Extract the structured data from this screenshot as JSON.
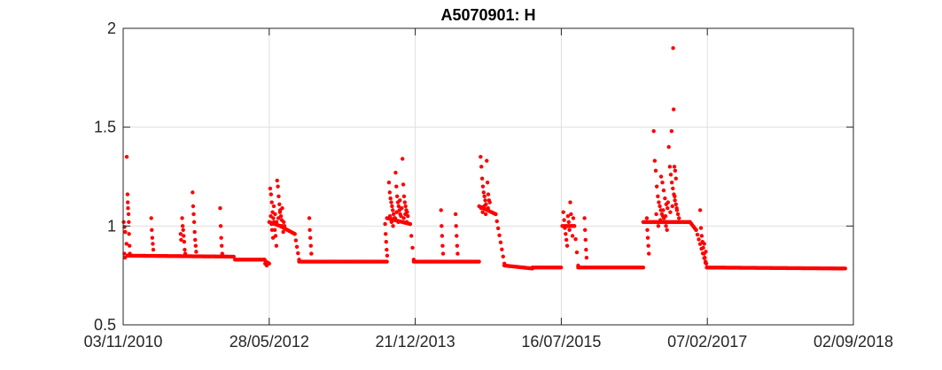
{
  "chart_data": {
    "type": "scatter",
    "title": "A5070901: H",
    "xlabel": "",
    "ylabel": "",
    "x_ticks": [
      "03/11/2010",
      "28/05/2012",
      "21/12/2013",
      "16/07/2015",
      "07/02/2017",
      "02/09/2018"
    ],
    "y_ticks": [
      "0.5",
      "1",
      "1.5",
      "2"
    ],
    "xlim": [
      "03/11/2010",
      "02/09/2018"
    ],
    "ylim": [
      0.5,
      2
    ],
    "grid": true,
    "legend": "none",
    "marker_color": "#ff0000",
    "baseline_segments": [
      {
        "x0": "05/11/2010",
        "x1": "11/11/2010",
        "y0": 1.02,
        "y1": 0.97
      },
      {
        "x0": "11/11/2010",
        "x1": "21/11/2010",
        "y0": 0.97,
        "y1": 0.85
      },
      {
        "x0": "21/11/2010",
        "x1": "10/01/2012",
        "y0": 0.85,
        "y1": 0.845
      },
      {
        "x0": "15/01/2012",
        "x1": "10/05/2012",
        "y0": 0.83,
        "y1": 0.83
      },
      {
        "x0": "15/05/2012",
        "x1": "28/05/2012",
        "y0": 0.82,
        "y1": 0.81
      },
      {
        "x0": "28/05/2012",
        "x1": "10/07/2012",
        "y0": 1.02,
        "y1": 1.0
      },
      {
        "x0": "10/07/2012",
        "x1": "05/09/2012",
        "y0": 1.0,
        "y1": 0.96
      },
      {
        "x0": "05/09/2012",
        "x1": "22/09/2012",
        "y0": 0.96,
        "y1": 0.83
      },
      {
        "x0": "22/09/2012",
        "x1": "01/09/2013",
        "y0": 0.82,
        "y1": 0.82
      },
      {
        "x0": "01/09/2013",
        "x1": "01/12/2013",
        "y0": 1.04,
        "y1": 1.01
      },
      {
        "x0": "01/12/2013",
        "x1": "15/12/2013",
        "y0": 1.01,
        "y1": 0.83
      },
      {
        "x0": "15/12/2013",
        "x1": "28/08/2014",
        "y0": 0.82,
        "y1": 0.82
      },
      {
        "x0": "28/08/2014",
        "x1": "01/11/2014",
        "y0": 1.1,
        "y1": 1.06
      },
      {
        "x0": "01/11/2014",
        "x1": "05/12/2014",
        "y0": 1.06,
        "y1": 0.81
      },
      {
        "x0": "05/12/2014",
        "x1": "25/03/2015",
        "y0": 0.8,
        "y1": 0.785
      },
      {
        "x0": "25/03/2015",
        "x1": "15/07/2015",
        "y0": 0.79,
        "y1": 0.79
      },
      {
        "x0": "20/07/2015",
        "x1": "05/09/2015",
        "y0": 1.0,
        "y1": 1.0
      },
      {
        "x0": "05/09/2015",
        "x1": "20/09/2015",
        "y0": 1.0,
        "y1": 0.8
      },
      {
        "x0": "20/09/2015",
        "x1": "01/06/2016",
        "y0": 0.79,
        "y1": 0.79
      },
      {
        "x0": "01/06/2016",
        "x1": "01/12/2016",
        "y0": 1.02,
        "y1": 1.02
      },
      {
        "x0": "01/12/2016",
        "x1": "25/12/2016",
        "y0": 1.02,
        "y1": 0.98
      },
      {
        "x0": "25/12/2016",
        "x1": "05/02/2017",
        "y0": 0.98,
        "y1": 0.79
      },
      {
        "x0": "05/02/2017",
        "x1": "01/08/2018",
        "y0": 0.79,
        "y1": 0.785
      }
    ],
    "scatter_points": [
      {
        "x": "17/11/2010",
        "y": 1.35
      },
      {
        "x": "20/11/2010",
        "y": 1.16
      },
      {
        "x": "21/11/2010",
        "y": 1.12
      },
      {
        "x": "22/11/2010",
        "y": 1.09
      },
      {
        "x": "24/11/2010",
        "y": 1.06
      },
      {
        "x": "25/11/2010",
        "y": 1.02
      },
      {
        "x": "26/11/2010",
        "y": 0.96
      },
      {
        "x": "28/11/2010",
        "y": 0.9
      },
      {
        "x": "29/11/2010",
        "y": 0.86
      },
      {
        "x": "08/11/2010",
        "y": 0.86
      },
      {
        "x": "10/11/2010",
        "y": 0.84
      },
      {
        "x": "21/02/2011",
        "y": 1.04
      },
      {
        "x": "23/02/2011",
        "y": 0.98
      },
      {
        "x": "25/02/2011",
        "y": 0.94
      },
      {
        "x": "27/02/2011",
        "y": 0.91
      },
      {
        "x": "01/03/2011",
        "y": 0.88
      },
      {
        "x": "22/06/2011",
        "y": 1.04
      },
      {
        "x": "24/06/2011",
        "y": 1.0
      },
      {
        "x": "26/06/2011",
        "y": 0.98
      },
      {
        "x": "28/06/2011",
        "y": 0.95
      },
      {
        "x": "30/06/2011",
        "y": 0.92
      },
      {
        "x": "02/07/2011",
        "y": 0.88
      },
      {
        "x": "04/07/2011",
        "y": 0.86
      },
      {
        "x": "16/06/2011",
        "y": 0.96
      },
      {
        "x": "18/06/2011",
        "y": 0.93
      },
      {
        "x": "02/08/2011",
        "y": 1.17
      },
      {
        "x": "04/08/2011",
        "y": 1.1
      },
      {
        "x": "06/08/2011",
        "y": 1.06
      },
      {
        "x": "08/08/2011",
        "y": 1.02
      },
      {
        "x": "10/08/2011",
        "y": 0.97
      },
      {
        "x": "12/08/2011",
        "y": 0.93
      },
      {
        "x": "14/08/2011",
        "y": 0.9
      },
      {
        "x": "16/08/2011",
        "y": 0.87
      },
      {
        "x": "18/11/2011",
        "y": 1.09
      },
      {
        "x": "20/11/2011",
        "y": 1.0
      },
      {
        "x": "22/11/2011",
        "y": 0.94
      },
      {
        "x": "24/11/2011",
        "y": 0.9
      },
      {
        "x": "26/11/2011",
        "y": 0.86
      },
      {
        "x": "08/05/2012",
        "y": 0.83
      },
      {
        "x": "12/05/2012",
        "y": 0.81
      },
      {
        "x": "18/05/2012",
        "y": 0.8
      },
      {
        "x": "01/06/2012",
        "y": 1.19
      },
      {
        "x": "04/06/2012",
        "y": 1.16
      },
      {
        "x": "07/06/2012",
        "y": 1.12
      },
      {
        "x": "10/06/2012",
        "y": 1.07
      },
      {
        "x": "13/06/2012",
        "y": 1.04
      },
      {
        "x": "16/06/2012",
        "y": 1.02
      },
      {
        "x": "19/06/2012",
        "y": 0.98
      },
      {
        "x": "22/06/2012",
        "y": 0.95
      },
      {
        "x": "25/06/2012",
        "y": 0.9
      },
      {
        "x": "28/06/2012",
        "y": 1.23
      },
      {
        "x": "01/07/2012",
        "y": 1.2
      },
      {
        "x": "04/07/2012",
        "y": 1.15
      },
      {
        "x": "07/07/2012",
        "y": 1.11
      },
      {
        "x": "10/07/2012",
        "y": 1.08
      },
      {
        "x": "13/07/2012",
        "y": 1.05
      },
      {
        "x": "16/07/2012",
        "y": 1.03
      },
      {
        "x": "19/07/2012",
        "y": 1.0
      },
      {
        "x": "22/07/2012",
        "y": 0.97
      },
      {
        "x": "03/06/2012",
        "y": 1.05
      },
      {
        "x": "06/06/2012",
        "y": 1.01
      },
      {
        "x": "15/06/2012",
        "y": 1.1
      },
      {
        "x": "20/06/2012",
        "y": 1.06
      },
      {
        "x": "26/06/2012",
        "y": 1.02
      },
      {
        "x": "03/07/2012",
        "y": 1.04
      },
      {
        "x": "09/07/2012",
        "y": 1.07
      },
      {
        "x": "15/07/2012",
        "y": 1.0
      },
      {
        "x": "18/07/2012",
        "y": 1.09
      },
      {
        "x": "24/07/2012",
        "y": 1.02
      },
      {
        "x": "27/07/2012",
        "y": 1.0
      },
      {
        "x": "08/06/2012",
        "y": 0.98
      },
      {
        "x": "12/06/2012",
        "y": 0.94
      },
      {
        "x": "01/11/2012",
        "y": 1.04
      },
      {
        "x": "03/11/2012",
        "y": 0.98
      },
      {
        "x": "05/11/2012",
        "y": 0.94
      },
      {
        "x": "07/11/2012",
        "y": 0.9
      },
      {
        "x": "09/11/2012",
        "y": 0.86
      },
      {
        "x": "25/08/2013",
        "y": 1.01
      },
      {
        "x": "27/08/2013",
        "y": 0.96
      },
      {
        "x": "29/08/2013",
        "y": 0.92
      },
      {
        "x": "31/08/2013",
        "y": 0.88
      },
      {
        "x": "02/09/2013",
        "y": 0.85
      },
      {
        "x": "09/09/2013",
        "y": 1.22
      },
      {
        "x": "12/09/2013",
        "y": 1.17
      },
      {
        "x": "15/09/2013",
        "y": 1.14
      },
      {
        "x": "18/09/2013",
        "y": 1.12
      },
      {
        "x": "21/09/2013",
        "y": 1.1
      },
      {
        "x": "24/09/2013",
        "y": 1.08
      },
      {
        "x": "27/09/2013",
        "y": 1.06
      },
      {
        "x": "30/09/2013",
        "y": 1.04
      },
      {
        "x": "05/10/2013",
        "y": 1.27
      },
      {
        "x": "08/10/2013",
        "y": 1.2
      },
      {
        "x": "11/10/2013",
        "y": 1.15
      },
      {
        "x": "14/10/2013",
        "y": 1.12
      },
      {
        "x": "17/10/2013",
        "y": 1.1
      },
      {
        "x": "20/10/2013",
        "y": 1.08
      },
      {
        "x": "23/10/2013",
        "y": 1.06
      },
      {
        "x": "26/10/2013",
        "y": 1.05
      },
      {
        "x": "01/11/2013",
        "y": 1.34
      },
      {
        "x": "04/11/2013",
        "y": 1.21
      },
      {
        "x": "07/11/2013",
        "y": 1.15
      },
      {
        "x": "10/11/2013",
        "y": 1.12
      },
      {
        "x": "13/11/2013",
        "y": 1.1
      },
      {
        "x": "16/11/2013",
        "y": 1.08
      },
      {
        "x": "19/11/2013",
        "y": 1.07
      },
      {
        "x": "22/11/2013",
        "y": 1.05
      },
      {
        "x": "13/09/2013",
        "y": 1.05
      },
      {
        "x": "19/09/2013",
        "y": 1.02
      },
      {
        "x": "25/09/2013",
        "y": 1.0
      },
      {
        "x": "03/10/2013",
        "y": 1.04
      },
      {
        "x": "09/10/2013",
        "y": 1.07
      },
      {
        "x": "16/10/2013",
        "y": 1.02
      },
      {
        "x": "22/10/2013",
        "y": 1.13
      },
      {
        "x": "29/10/2013",
        "y": 1.09
      },
      {
        "x": "06/11/2013",
        "y": 1.04
      },
      {
        "x": "12/11/2013",
        "y": 1.06
      },
      {
        "x": "18/11/2013",
        "y": 1.02
      },
      {
        "x": "01/04/2014",
        "y": 1.08
      },
      {
        "x": "03/04/2014",
        "y": 1.0
      },
      {
        "x": "05/04/2014",
        "y": 0.95
      },
      {
        "x": "07/04/2014",
        "y": 0.9
      },
      {
        "x": "09/04/2014",
        "y": 0.86
      },
      {
        "x": "28/05/2014",
        "y": 1.06
      },
      {
        "x": "30/05/2014",
        "y": 1.0
      },
      {
        "x": "01/06/2014",
        "y": 0.95
      },
      {
        "x": "03/06/2014",
        "y": 0.9
      },
      {
        "x": "05/06/2014",
        "y": 0.86
      },
      {
        "x": "03/09/2014",
        "y": 1.35
      },
      {
        "x": "06/09/2014",
        "y": 1.3
      },
      {
        "x": "09/09/2014",
        "y": 1.24
      },
      {
        "x": "12/09/2014",
        "y": 1.2
      },
      {
        "x": "15/09/2014",
        "y": 1.17
      },
      {
        "x": "18/09/2014",
        "y": 1.15
      },
      {
        "x": "21/09/2014",
        "y": 1.13
      },
      {
        "x": "24/09/2014",
        "y": 1.11
      },
      {
        "x": "27/09/2014",
        "y": 1.33
      },
      {
        "x": "30/09/2014",
        "y": 1.22
      },
      {
        "x": "03/10/2014",
        "y": 1.16
      },
      {
        "x": "06/10/2014",
        "y": 1.13
      },
      {
        "x": "09/10/2014",
        "y": 1.12
      },
      {
        "x": "05/09/2014",
        "y": 1.09
      },
      {
        "x": "11/09/2014",
        "y": 1.07
      },
      {
        "x": "17/09/2014",
        "y": 1.1
      },
      {
        "x": "23/09/2014",
        "y": 1.06
      },
      {
        "x": "02/10/2014",
        "y": 1.09
      },
      {
        "x": "24/07/2015",
        "y": 1.07
      },
      {
        "x": "27/07/2015",
        "y": 1.03
      },
      {
        "x": "30/07/2015",
        "y": 0.99
      },
      {
        "x": "02/08/2015",
        "y": 0.96
      },
      {
        "x": "05/08/2015",
        "y": 0.93
      },
      {
        "x": "08/08/2015",
        "y": 0.9
      },
      {
        "x": "11/08/2015",
        "y": 1.05
      },
      {
        "x": "14/08/2015",
        "y": 1.02
      },
      {
        "x": "17/08/2015",
        "y": 0.98
      },
      {
        "x": "20/08/2015",
        "y": 1.12
      },
      {
        "x": "23/08/2015",
        "y": 1.06
      },
      {
        "x": "26/08/2015",
        "y": 1.0
      },
      {
        "x": "29/08/2015",
        "y": 0.95
      },
      {
        "x": "01/09/2015",
        "y": 1.04
      },
      {
        "x": "15/10/2015",
        "y": 1.04
      },
      {
        "x": "17/10/2015",
        "y": 0.98
      },
      {
        "x": "19/10/2015",
        "y": 0.93
      },
      {
        "x": "21/10/2015",
        "y": 0.88
      },
      {
        "x": "23/10/2015",
        "y": 0.84
      },
      {
        "x": "15/06/2016",
        "y": 1.04
      },
      {
        "x": "17/06/2016",
        "y": 0.98
      },
      {
        "x": "19/06/2016",
        "y": 0.94
      },
      {
        "x": "21/06/2016",
        "y": 0.9
      },
      {
        "x": "23/06/2016",
        "y": 0.86
      },
      {
        "x": "12/07/2016",
        "y": 1.48
      },
      {
        "x": "16/07/2016",
        "y": 1.33
      },
      {
        "x": "20/07/2016",
        "y": 1.28
      },
      {
        "x": "24/07/2016",
        "y": 1.2
      },
      {
        "x": "28/07/2016",
        "y": 1.15
      },
      {
        "x": "01/08/2016",
        "y": 1.12
      },
      {
        "x": "05/08/2016",
        "y": 1.1
      },
      {
        "x": "09/08/2016",
        "y": 1.08
      },
      {
        "x": "13/08/2016",
        "y": 1.06
      },
      {
        "x": "17/08/2016",
        "y": 1.05
      },
      {
        "x": "21/08/2016",
        "y": 1.04
      },
      {
        "x": "25/08/2016",
        "y": 1.02
      },
      {
        "x": "29/08/2016",
        "y": 1.0
      },
      {
        "x": "02/09/2016",
        "y": 0.98
      },
      {
        "x": "10/08/2016",
        "y": 1.25
      },
      {
        "x": "15/08/2016",
        "y": 1.22
      },
      {
        "x": "20/08/2016",
        "y": 1.18
      },
      {
        "x": "25/08/2016",
        "y": 1.14
      },
      {
        "x": "30/08/2016",
        "y": 1.11
      },
      {
        "x": "04/09/2016",
        "y": 1.09
      },
      {
        "x": "09/09/2016",
        "y": 1.4
      },
      {
        "x": "13/09/2016",
        "y": 1.3
      },
      {
        "x": "17/09/2016",
        "y": 1.26
      },
      {
        "x": "21/09/2016",
        "y": 1.22
      },
      {
        "x": "25/09/2016",
        "y": 1.19
      },
      {
        "x": "29/09/2016",
        "y": 1.16
      },
      {
        "x": "03/10/2016",
        "y": 1.13
      },
      {
        "x": "07/10/2016",
        "y": 1.11
      },
      {
        "x": "11/10/2016",
        "y": 1.08
      },
      {
        "x": "15/10/2016",
        "y": 1.06
      },
      {
        "x": "19/10/2016",
        "y": 1.04
      },
      {
        "x": "20/09/2016",
        "y": 1.48
      },
      {
        "x": "26/09/2016",
        "y": 1.9
      },
      {
        "x": "28/09/2016",
        "y": 1.59
      },
      {
        "x": "01/10/2016",
        "y": 1.3
      },
      {
        "x": "04/10/2016",
        "y": 1.28
      },
      {
        "x": "07/10/2016",
        "y": 1.24
      },
      {
        "x": "14/07/2016",
        "y": 1.02
      },
      {
        "x": "22/07/2016",
        "y": 1.06
      },
      {
        "x": "30/07/2016",
        "y": 1.0
      },
      {
        "x": "07/08/2016",
        "y": 1.03
      },
      {
        "x": "18/08/2016",
        "y": 1.08
      },
      {
        "x": "27/08/2016",
        "y": 1.05
      },
      {
        "x": "06/09/2016",
        "y": 1.12
      },
      {
        "x": "15/09/2016",
        "y": 1.07
      },
      {
        "x": "23/09/2016",
        "y": 1.1
      },
      {
        "x": "02/10/2016",
        "y": 1.15
      },
      {
        "x": "10/10/2016",
        "y": 1.09
      },
      {
        "x": "10/01/2017",
        "y": 1.08
      },
      {
        "x": "13/01/2017",
        "y": 0.99
      },
      {
        "x": "16/01/2017",
        "y": 0.95
      },
      {
        "x": "19/01/2017",
        "y": 0.92
      },
      {
        "x": "22/01/2017",
        "y": 0.89
      },
      {
        "x": "25/01/2017",
        "y": 0.86
      },
      {
        "x": "28/01/2017",
        "y": 0.84
      },
      {
        "x": "31/01/2017",
        "y": 0.82
      },
      {
        "x": "03/02/2017",
        "y": 0.81
      },
      {
        "x": "26/01/2017",
        "y": 0.91
      },
      {
        "x": "01/02/2017",
        "y": 0.87
      }
    ]
  }
}
